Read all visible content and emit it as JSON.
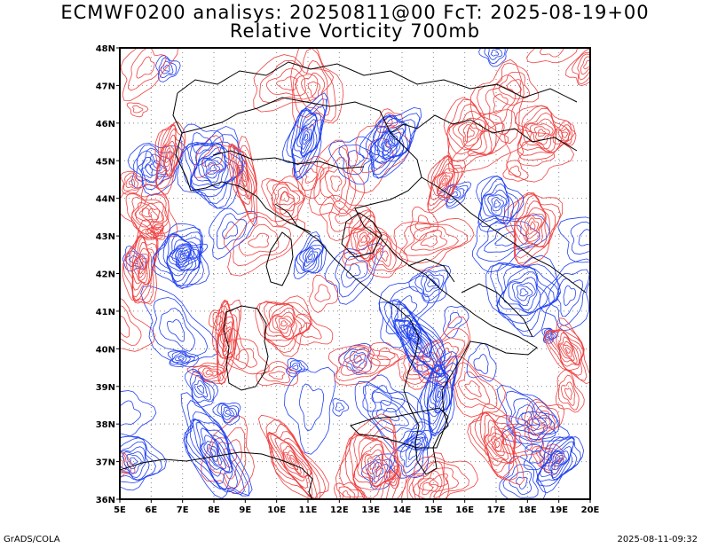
{
  "title_line1": "ECMWF0200 analisys: 20250811@00 FcT: 2025-08-19+00",
  "title_line2": "Relative Vorticity 700mb",
  "footer_left": "GrADS/COLA",
  "footer_right": "2025-08-11-09:32",
  "map": {
    "lon_range": [
      5,
      20
    ],
    "lat_range": [
      36,
      48
    ],
    "lon_ticks": [
      "5E",
      "6E",
      "7E",
      "8E",
      "9E",
      "10E",
      "11E",
      "12E",
      "13E",
      "14E",
      "15E",
      "16E",
      "17E",
      "18E",
      "19E",
      "20E"
    ],
    "lat_ticks": [
      "36N",
      "37N",
      "38N",
      "39N",
      "40N",
      "41N",
      "42N",
      "43N",
      "44N",
      "45N",
      "46N",
      "47N",
      "48N"
    ],
    "grid": "dotted",
    "colors": {
      "positive_contour": "#f04040",
      "negative_contour": "#2040f0",
      "coastline": "#000000"
    }
  }
}
